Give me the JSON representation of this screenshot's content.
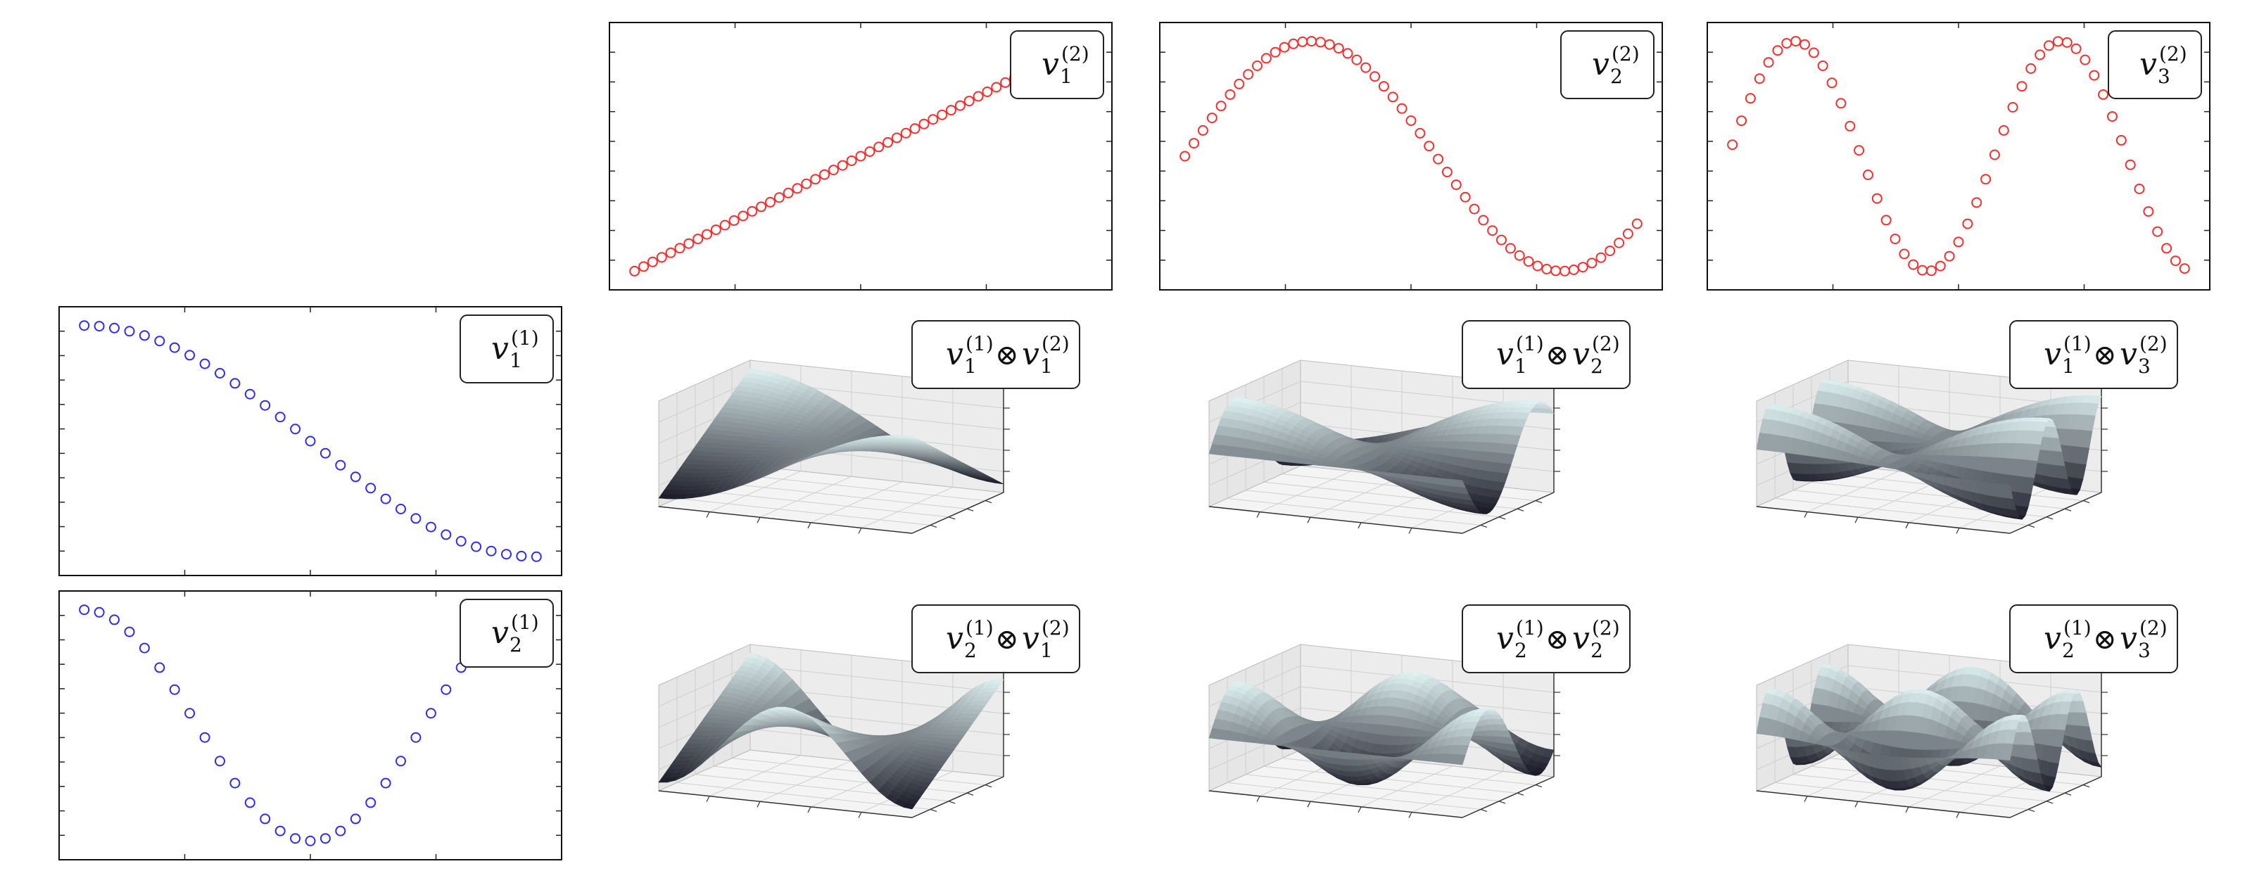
{
  "figure": {
    "colors": {
      "series_1": "#2b2bff",
      "series_2": "#ff2b2b",
      "frame": "#111111",
      "surface_light": "#dff1f1",
      "surface_dark": "#1a1a26",
      "pane": "#f2f2f2",
      "grid": "#cfcfcf"
    },
    "tensor_symbol": "⊗"
  },
  "chart_data": [
    {
      "id": "v1_1",
      "type": "scatter",
      "marker": "open-circle",
      "color": "#2b2bff",
      "n": 31,
      "function": "cos(theta)",
      "grid": false,
      "legend_position": "top-right",
      "legend": {
        "base": "v",
        "sub": "1",
        "sup": "(1)"
      }
    },
    {
      "id": "v2_1",
      "type": "scatter",
      "marker": "open-circle",
      "color": "#2b2bff",
      "n": 31,
      "function": "cos(2*theta)",
      "grid": false,
      "legend_position": "top-right",
      "legend": {
        "base": "v",
        "sub": "2",
        "sup": "(1)"
      }
    },
    {
      "id": "v1_2",
      "type": "scatter",
      "marker": "open-circle",
      "color": "#ff2b2b",
      "n": 51,
      "function": "linear increasing",
      "grid": false,
      "legend_position": "top-right",
      "legend": {
        "base": "v",
        "sub": "1",
        "sup": "(2)"
      }
    },
    {
      "id": "v2_2",
      "type": "scatter",
      "marker": "open-circle",
      "color": "#ff2b2b",
      "n": 51,
      "function": "sine, one full period",
      "grid": false,
      "legend_position": "top-right",
      "legend": {
        "base": "v",
        "sub": "2",
        "sup": "(2)"
      }
    },
    {
      "id": "v3_2",
      "type": "scatter",
      "marker": "open-circle",
      "color": "#ff2b2b",
      "n": 51,
      "function": "sine, one and a half periods",
      "grid": false,
      "legend_position": "top-right",
      "legend": {
        "base": "v",
        "sub": "3",
        "sup": "(2)"
      }
    },
    {
      "id": "v1_1_x_v1_2",
      "type": "surface",
      "factors": [
        "v1_1",
        "v1_2"
      ],
      "grid": true,
      "legend_position": "top-right",
      "legend": {
        "a": {
          "base": "v",
          "sub": "1",
          "sup": "(1)"
        },
        "b": {
          "base": "v",
          "sub": "1",
          "sup": "(2)"
        }
      }
    },
    {
      "id": "v1_1_x_v2_2",
      "type": "surface",
      "factors": [
        "v1_1",
        "v2_2"
      ],
      "grid": true,
      "legend_position": "top-right",
      "legend": {
        "a": {
          "base": "v",
          "sub": "1",
          "sup": "(1)"
        },
        "b": {
          "base": "v",
          "sub": "2",
          "sup": "(2)"
        }
      }
    },
    {
      "id": "v1_1_x_v3_2",
      "type": "surface",
      "factors": [
        "v1_1",
        "v3_2"
      ],
      "grid": true,
      "legend_position": "top-right",
      "legend": {
        "a": {
          "base": "v",
          "sub": "1",
          "sup": "(1)"
        },
        "b": {
          "base": "v",
          "sub": "3",
          "sup": "(2)"
        }
      }
    },
    {
      "id": "v2_1_x_v1_2",
      "type": "surface",
      "factors": [
        "v2_1",
        "v1_2"
      ],
      "grid": true,
      "legend_position": "top-right",
      "legend": {
        "a": {
          "base": "v",
          "sub": "2",
          "sup": "(1)"
        },
        "b": {
          "base": "v",
          "sub": "1",
          "sup": "(2)"
        }
      }
    },
    {
      "id": "v2_1_x_v2_2",
      "type": "surface",
      "factors": [
        "v2_1",
        "v2_2"
      ],
      "grid": true,
      "legend_position": "top-right",
      "legend": {
        "a": {
          "base": "v",
          "sub": "2",
          "sup": "(1)"
        },
        "b": {
          "base": "v",
          "sub": "2",
          "sup": "(2)"
        }
      }
    },
    {
      "id": "v2_1_x_v3_2",
      "type": "surface",
      "factors": [
        "v2_1",
        "v3_2"
      ],
      "grid": true,
      "legend_position": "top-right",
      "legend": {
        "a": {
          "base": "v",
          "sub": "2",
          "sup": "(1)"
        },
        "b": {
          "base": "v",
          "sub": "3",
          "sup": "(2)"
        }
      }
    }
  ]
}
